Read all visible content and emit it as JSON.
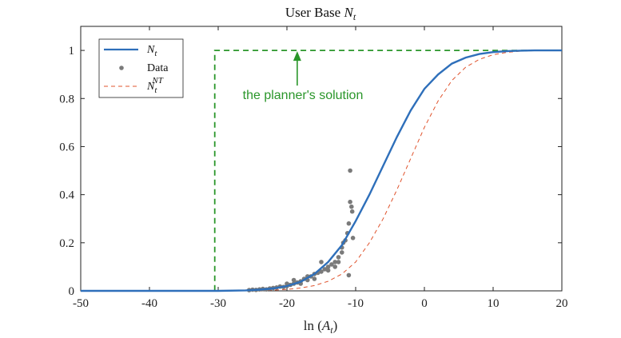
{
  "chart_data": {
    "type": "line",
    "title": "User Base N_t",
    "title_text": "User Base ",
    "title_math": "N",
    "title_sub": "t",
    "xlabel": "ln (A_t)",
    "xlabel_prefix": "ln (",
    "xlabel_math": "A",
    "xlabel_sub": "t",
    "xlabel_suffix": ")",
    "xlim": [
      -50,
      20
    ],
    "ylim": [
      0,
      1.1
    ],
    "xticks": [
      -50,
      -40,
      -30,
      -20,
      -10,
      0,
      10,
      20
    ],
    "xtick_labels": [
      "-50",
      "-40",
      "-30",
      "-20",
      "-10",
      "0",
      "10",
      "20"
    ],
    "yticks": [
      0,
      0.2,
      0.4,
      0.6,
      0.8,
      1
    ],
    "ytick_labels": [
      "0",
      "0.2",
      "0.4",
      "0.6",
      "0.8",
      "1"
    ],
    "grid": false,
    "legend_position": "top-left",
    "colors": {
      "Nt": "#2e6fba",
      "data": "#7a7a7a",
      "NNT": "#e0542e",
      "planner": "#2a962a",
      "axis": "#222222"
    },
    "series": [
      {
        "name": "N_t",
        "style": "solid",
        "x": [
          -50,
          -45,
          -40,
          -35,
          -30,
          -26,
          -24,
          -22,
          -20,
          -18,
          -16,
          -14,
          -12,
          -10,
          -8,
          -6,
          -4,
          -2,
          0,
          2,
          4,
          6,
          8,
          10,
          12,
          14,
          16,
          18,
          20
        ],
        "y": [
          0,
          0,
          0,
          0,
          0,
          0.002,
          0.005,
          0.01,
          0.02,
          0.038,
          0.07,
          0.12,
          0.19,
          0.29,
          0.4,
          0.52,
          0.64,
          0.75,
          0.84,
          0.9,
          0.945,
          0.97,
          0.985,
          0.993,
          0.997,
          0.999,
          1.0,
          1.0,
          1.0
        ]
      },
      {
        "name": "N_t^NT",
        "style": "dashed",
        "x": [
          -50,
          -40,
          -30,
          -24,
          -22,
          -20,
          -18,
          -16,
          -14,
          -12,
          -10,
          -8,
          -6,
          -4,
          -2,
          0,
          2,
          4,
          6,
          8,
          10,
          12,
          14,
          16,
          18,
          20
        ],
        "y": [
          0,
          0,
          0,
          0.001,
          0.003,
          0.006,
          0.012,
          0.022,
          0.04,
          0.07,
          0.12,
          0.2,
          0.3,
          0.42,
          0.55,
          0.68,
          0.79,
          0.875,
          0.93,
          0.963,
          0.982,
          0.992,
          0.997,
          0.999,
          1.0,
          1.0
        ]
      },
      {
        "name": "planner",
        "style": "dashed",
        "x": [
          -50,
          -30.5,
          -30.5,
          20
        ],
        "y": [
          0,
          0,
          1.0,
          1.0
        ]
      },
      {
        "name": "Data",
        "style": "scatter",
        "points": [
          [
            -25.5,
            0.003
          ],
          [
            -25,
            0.005
          ],
          [
            -24.5,
            0.004
          ],
          [
            -24,
            0.006
          ],
          [
            -23.5,
            0.008
          ],
          [
            -23,
            0.006
          ],
          [
            -22.5,
            0.01
          ],
          [
            -22,
            0.012
          ],
          [
            -21.5,
            0.014
          ],
          [
            -21,
            0.018
          ],
          [
            -20.5,
            0.016
          ],
          [
            -20,
            0.02
          ],
          [
            -19.5,
            0.025
          ],
          [
            -19,
            0.03
          ],
          [
            -18.5,
            0.035
          ],
          [
            -18,
            0.04
          ],
          [
            -17.5,
            0.05
          ],
          [
            -17,
            0.045
          ],
          [
            -16.5,
            0.06
          ],
          [
            -16,
            0.07
          ],
          [
            -15.5,
            0.075
          ],
          [
            -15,
            0.08
          ],
          [
            -14.5,
            0.09
          ],
          [
            -14,
            0.1
          ],
          [
            -13.5,
            0.11
          ],
          [
            -13,
            0.12
          ],
          [
            -12.5,
            0.14
          ],
          [
            -12,
            0.16
          ],
          [
            -11.8,
            0.2
          ],
          [
            -11.5,
            0.21
          ],
          [
            -11.2,
            0.24
          ],
          [
            -11,
            0.28
          ],
          [
            -10.8,
            0.37
          ],
          [
            -10.6,
            0.35
          ],
          [
            -10.5,
            0.33
          ],
          [
            -10.4,
            0.22
          ],
          [
            -11,
            0.065
          ],
          [
            -10.8,
            0.5
          ],
          [
            -13,
            0.1
          ],
          [
            -14,
            0.085
          ],
          [
            -15,
            0.12
          ],
          [
            -16,
            0.05
          ],
          [
            -17,
            0.06
          ],
          [
            -18,
            0.03
          ],
          [
            -19,
            0.045
          ],
          [
            -20,
            0.03
          ],
          [
            -12,
            0.18
          ],
          [
            -12.5,
            0.12
          ]
        ]
      }
    ],
    "legend": {
      "entries": [
        {
          "math": "N",
          "sub": "t",
          "sup": ""
        },
        {
          "label": "Data"
        },
        {
          "math": "N",
          "sub": "t",
          "sup": "NT"
        }
      ]
    },
    "annotations": [
      {
        "text": "the planner's solution",
        "x": -18.5,
        "y": 0.83,
        "arrow_to": [
          -18.5,
          1.0
        ]
      }
    ]
  }
}
